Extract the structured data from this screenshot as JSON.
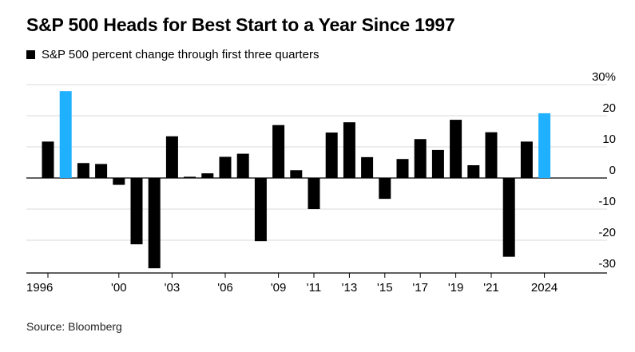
{
  "chart_data": {
    "type": "bar",
    "title": "S&P 500 Heads for Best Start to a Year Since 1997",
    "legend": [
      {
        "label": "S&P 500 percent change through first three quarters",
        "color": "#000000"
      }
    ],
    "x": [
      1996,
      1997,
      1998,
      1999,
      2000,
      2001,
      2002,
      2003,
      2004,
      2005,
      2006,
      2007,
      2008,
      2009,
      2010,
      2011,
      2012,
      2013,
      2014,
      2015,
      2016,
      2017,
      2018,
      2019,
      2020,
      2021,
      2022,
      2023,
      2024
    ],
    "values": [
      11.7,
      27.9,
      4.8,
      4.5,
      -2.2,
      -21.3,
      -29.0,
      13.4,
      0.4,
      1.5,
      6.8,
      7.8,
      -20.3,
      17.0,
      2.5,
      -10.0,
      14.6,
      17.9,
      6.7,
      -6.7,
      6.1,
      12.5,
      9.0,
      18.7,
      4.1,
      14.7,
      -25.3,
      11.7,
      20.8
    ],
    "highlight_years": [
      1997,
      2024
    ],
    "colors": {
      "default": "#000000",
      "highlight": "#1fb0ff"
    },
    "xtick_years": [
      1996,
      2000,
      2003,
      2006,
      2009,
      2011,
      2013,
      2015,
      2017,
      2019,
      2021,
      2024
    ],
    "xtick_labels": [
      "1996",
      "'00",
      "'03",
      "'06",
      "'09",
      "'11",
      "'13",
      "'15",
      "'17",
      "'19",
      "'21",
      "2024"
    ],
    "yticks": [
      30,
      20,
      10,
      0,
      -10,
      -20,
      -30
    ],
    "ytick_labels": [
      "30%",
      "20",
      "10",
      "0",
      "-10",
      "-20",
      "-30"
    ],
    "ylim": [
      -30,
      30
    ],
    "grid": true,
    "y_axis_side": "right",
    "source": "Source: Bloomberg"
  }
}
